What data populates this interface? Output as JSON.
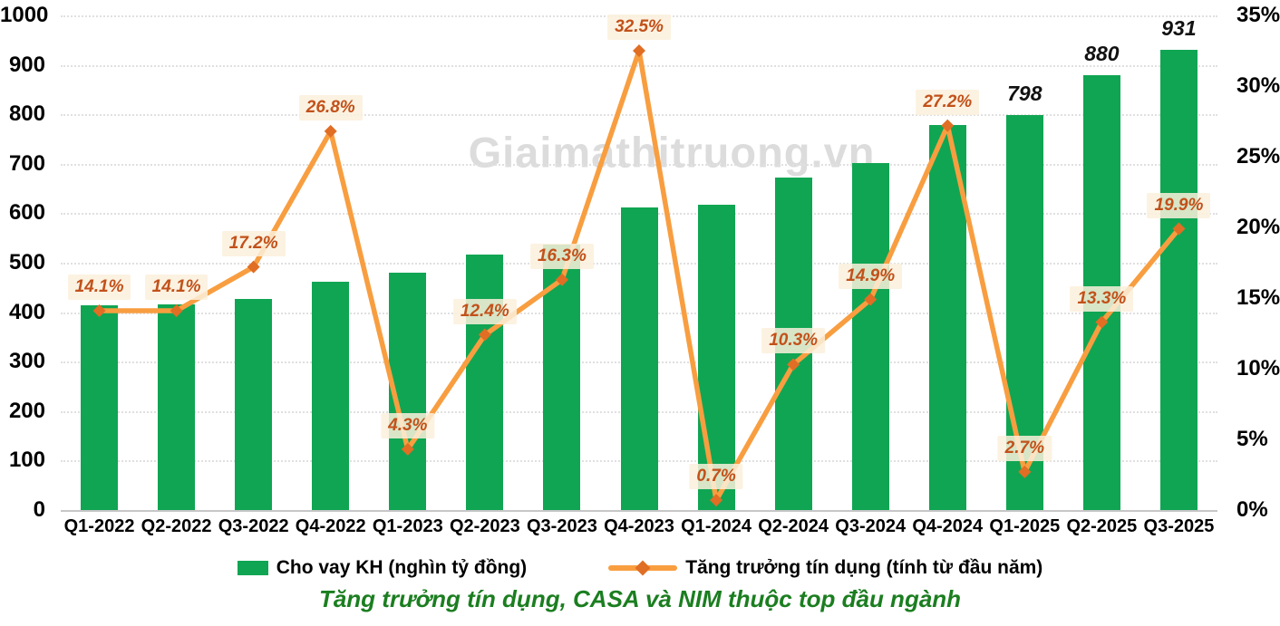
{
  "watermark": {
    "text": "Giaimathitruong.vn"
  },
  "chart_title": {
    "text": "Tăng trưởng tín dụng, CASA và NIM thuộc top đầu ngành"
  },
  "legend": {
    "bar_label": "Cho vay KH (nghìn tỷ đồng)",
    "line_label": "Tăng trưởng tín dụng (tính từ đầu năm)"
  },
  "colors": {
    "bar": "#10A553",
    "line": "#F89E40",
    "marker": "#E06E24",
    "point_label_text": "#C2511A",
    "point_label_bg": "rgba(251,240,220,0.85)",
    "bar_label_text": "#111111",
    "axis_text": "#000000",
    "grid": "#e0e0e0",
    "axis_line": "#c6c6c6",
    "watermark": "#DCDCDC",
    "title": "#1B7E20"
  },
  "chart_data": {
    "type": "bar",
    "subtype": "bar-line-combo",
    "grid": "horizontal-dotted",
    "legend_position": "bottom",
    "categories": [
      "Q1-2022",
      "Q2-2022",
      "Q3-2022",
      "Q4-2022",
      "Q1-2023",
      "Q2-2023",
      "Q3-2023",
      "Q4-2023",
      "Q1-2024",
      "Q2-2024",
      "Q3-2024",
      "Q4-2024",
      "Q1-2025",
      "Q2-2025",
      "Q3-2025"
    ],
    "series": [
      {
        "name": "Cho vay KH (nghìn tỷ đồng)",
        "type": "bar",
        "axis": "left",
        "values": [
          414,
          416,
          427,
          461,
          479,
          517,
          537,
          612,
          617,
          673,
          702,
          778,
          798,
          880,
          931
        ],
        "value_labels": {
          "12": "798",
          "13": "880",
          "14": "931"
        }
      },
      {
        "name": "Tăng trưởng tín dụng (tính từ đầu năm)",
        "type": "line",
        "axis": "right",
        "values": [
          14.1,
          14.1,
          17.2,
          26.8,
          4.3,
          12.4,
          16.3,
          32.5,
          0.7,
          10.3,
          14.9,
          27.2,
          2.7,
          13.3,
          19.9
        ],
        "point_labels": [
          "14.1%",
          "14.1%",
          "17.2%",
          "26.8%",
          "4.3%",
          "12.4%",
          "16.3%",
          "32.5%",
          "0.7%",
          "10.3%",
          "14.9%",
          "27.2%",
          "2.7%",
          "13.3%",
          "19.9%"
        ]
      }
    ],
    "left_axis": {
      "min": 0,
      "max": 1000,
      "step": 100,
      "tick_labels": [
        "0",
        "100",
        "200",
        "300",
        "400",
        "500",
        "600",
        "700",
        "800",
        "900",
        "1000"
      ]
    },
    "right_axis": {
      "min": 0,
      "max": 35,
      "step": 5,
      "tick_labels": [
        "0%",
        "5%",
        "10%",
        "15%",
        "20%",
        "25%",
        "30%",
        "35%"
      ]
    }
  }
}
